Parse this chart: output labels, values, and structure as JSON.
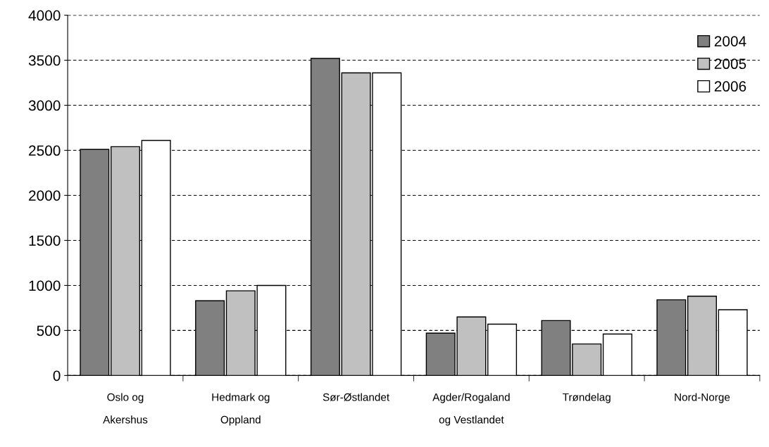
{
  "chart_data": {
    "type": "bar",
    "categories": [
      "Oslo og\nAkershus",
      "Hedmark og\nOppland",
      "Sør-Østlandet",
      "Agder/Rogaland\nog Vestlandet",
      "Trøndelag",
      "Nord-Norge"
    ],
    "series": [
      {
        "name": "2004",
        "color": "#808080",
        "values": [
          2510,
          830,
          3520,
          470,
          610,
          840
        ]
      },
      {
        "name": "2005",
        "color": "#c0c0c0",
        "values": [
          2540,
          940,
          3360,
          650,
          350,
          880
        ]
      },
      {
        "name": "2006",
        "color": "#ffffff",
        "values": [
          2610,
          1000,
          3360,
          570,
          460,
          730
        ]
      }
    ],
    "ylim": [
      0,
      4000
    ],
    "yticks": [
      0,
      500,
      1000,
      1500,
      2000,
      2500,
      3000,
      3500,
      4000
    ],
    "grid": "y",
    "legend": "top right"
  }
}
